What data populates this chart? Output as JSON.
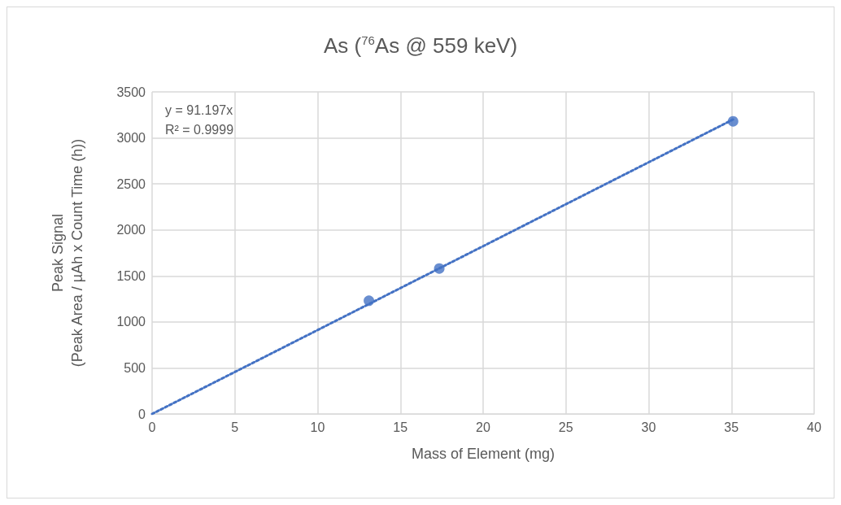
{
  "chart_data": {
    "type": "scatter",
    "title": "As ($^{76}$As @ 559 keV)",
    "xlabel": "Mass of Element (mg)",
    "ylabel": "Peak Signal\n(Peak Area / µAh x Count Time (h))",
    "annotations": [
      "y = 91.197x",
      "R² = 0.9999"
    ],
    "series": [
      {
        "color": "#4472c4",
        "x": [
          13.1,
          17.35,
          35.1
        ],
        "values": [
          1230,
          1580,
          3180
        ],
        "marker": "circle"
      },
      {
        "type": "line",
        "color": "#4472c4",
        "x": [
          0,
          35.1
        ],
        "values": [
          0,
          3200
        ],
        "line_style": "dotted",
        "marker": "none"
      }
    ],
    "xlim": [
      0,
      40
    ],
    "xticks": [
      0,
      5,
      10,
      15,
      20,
      25,
      30,
      35,
      40
    ],
    "ylim": [
      0,
      3500
    ],
    "yticks": [
      0,
      500,
      1000,
      1500,
      2000,
      2500,
      3000,
      3500
    ],
    "grid": true
  }
}
